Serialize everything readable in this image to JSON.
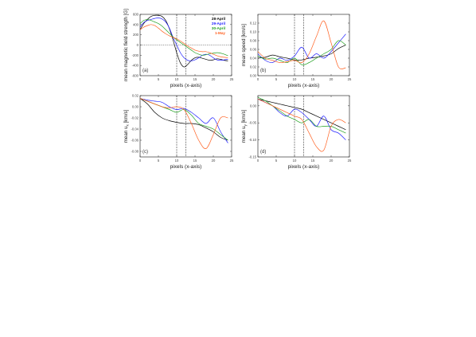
{
  "chart_data": [
    {
      "id": "a",
      "type": "line",
      "panel_label": "(a)",
      "xlabel": "pixels (x-axis)",
      "ylabel": "mean magnetic field strength [G]",
      "xlim": [
        0,
        25
      ],
      "ylim": [
        -600,
        600
      ],
      "xticks": [
        0,
        5,
        10,
        15,
        20,
        25
      ],
      "yticks": [
        -600,
        -400,
        -200,
        0,
        200,
        400,
        600
      ],
      "yticklabels": [
        "-600",
        "-400",
        "-200",
        "0",
        "200",
        "400",
        "600"
      ],
      "hlines": [
        0
      ],
      "vlines": [
        10,
        12.5
      ],
      "legend": {
        "position": "top-right",
        "entries": [
          "28-April",
          "29-April",
          "30-April",
          "1-May"
        ]
      },
      "series": [
        {
          "name": "28-April",
          "color": "#000000",
          "x": [
            0,
            1,
            2,
            3,
            4,
            5,
            6,
            7,
            8,
            9,
            10,
            11,
            12,
            13,
            14,
            15,
            16,
            17,
            18,
            19,
            20,
            21,
            22,
            23,
            24
          ],
          "y": [
            300,
            420,
            500,
            560,
            580,
            580,
            560,
            480,
            320,
            100,
            -150,
            -350,
            -430,
            -380,
            -300,
            -250,
            -240,
            -260,
            -280,
            -300,
            -290,
            -270,
            -280,
            -300,
            -310
          ]
        },
        {
          "name": "29-April",
          "color": "#2020ff",
          "x": [
            0,
            1,
            2,
            3,
            4,
            5,
            6,
            7,
            8,
            9,
            10,
            11,
            12,
            13,
            14,
            15,
            16,
            17,
            18,
            19,
            20,
            21,
            22,
            23,
            24
          ],
          "y": [
            350,
            440,
            480,
            500,
            520,
            530,
            510,
            450,
            330,
            150,
            0,
            -150,
            -250,
            -300,
            -310,
            -290,
            -250,
            -200,
            -180,
            -200,
            -250,
            -290,
            -300,
            -290,
            -280
          ]
        },
        {
          "name": "30-April",
          "color": "#20a020",
          "x": [
            0,
            1,
            2,
            3,
            4,
            5,
            6,
            7,
            8,
            9,
            10,
            11,
            12,
            13,
            14,
            15,
            16,
            17,
            18,
            19,
            20,
            21,
            22,
            23,
            24
          ],
          "y": [
            420,
            480,
            500,
            480,
            450,
            420,
            370,
            300,
            230,
            160,
            100,
            50,
            0,
            -50,
            -100,
            -150,
            -180,
            -200,
            -190,
            -170,
            -160,
            -150,
            -160,
            -180,
            -210
          ]
        },
        {
          "name": "1-May",
          "color": "#ff6020",
          "x": [
            0,
            1,
            2,
            3,
            4,
            5,
            6,
            7,
            8,
            9,
            10,
            11,
            12,
            13,
            14,
            15,
            16,
            17,
            18,
            19,
            20,
            21,
            22,
            23,
            24
          ],
          "y": [
            300,
            350,
            380,
            400,
            380,
            330,
            270,
            220,
            180,
            150,
            120,
            80,
            30,
            -20,
            -60,
            -100,
            -120,
            -130,
            -130,
            -150,
            -180,
            -210,
            -230,
            -240,
            -250
          ]
        }
      ]
    },
    {
      "id": "b",
      "type": "line",
      "panel_label": "(b)",
      "xlabel": "pixels (x-axis)",
      "ylabel": "mean speed [km/s]",
      "xlim": [
        0,
        25
      ],
      "ylim": [
        0.0,
        0.14
      ],
      "xticks": [
        0,
        5,
        10,
        15,
        20,
        25
      ],
      "yticks": [
        0.0,
        0.02,
        0.04,
        0.06,
        0.08,
        0.1,
        0.12
      ],
      "yticklabels": [
        "0.00",
        "0.02",
        "0.04",
        "0.06",
        "0.08",
        "0.10",
        "0.12"
      ],
      "vlines": [
        10,
        12.5
      ],
      "series": [
        {
          "name": "28-April",
          "color": "#000000",
          "x": [
            0,
            2,
            4,
            6,
            8,
            10,
            12,
            14,
            16,
            18,
            20,
            22,
            24
          ],
          "y": [
            0.04,
            0.042,
            0.047,
            0.043,
            0.04,
            0.036,
            0.036,
            0.04,
            0.042,
            0.045,
            0.05,
            0.062,
            0.07
          ]
        },
        {
          "name": "29-April",
          "color": "#2020ff",
          "x": [
            0,
            2,
            4,
            6,
            8,
            10,
            12,
            14,
            16,
            18,
            20,
            22,
            24
          ],
          "y": [
            0.05,
            0.035,
            0.03,
            0.04,
            0.035,
            0.045,
            0.065,
            0.04,
            0.05,
            0.04,
            0.055,
            0.075,
            0.095
          ]
        },
        {
          "name": "30-April",
          "color": "#20a020",
          "x": [
            0,
            2,
            4,
            6,
            8,
            10,
            12,
            14,
            16,
            18,
            20,
            22,
            24
          ],
          "y": [
            0.045,
            0.038,
            0.04,
            0.035,
            0.03,
            0.04,
            0.025,
            0.03,
            0.04,
            0.05,
            0.06,
            0.08,
            0.07
          ]
        },
        {
          "name": "1-May",
          "color": "#ff6020",
          "x": [
            0,
            2,
            4,
            6,
            8,
            10,
            12,
            14,
            16,
            18,
            20,
            22,
            24
          ],
          "y": [
            0.055,
            0.04,
            0.035,
            0.03,
            0.032,
            0.035,
            0.03,
            0.05,
            0.09,
            0.125,
            0.075,
            0.02,
            0.018
          ]
        }
      ]
    },
    {
      "id": "c",
      "type": "line",
      "panel_label": "(c)",
      "xlabel": "pixels (x-axis)",
      "ylabel": "mean ux [km/s]",
      "ylabel_text": "mean u",
      "ylabel_sub": "x",
      "ylabel_unit": " [km/s]",
      "xlim": [
        0,
        25
      ],
      "ylim": [
        -0.09,
        0.02
      ],
      "xticks": [
        0,
        5,
        10,
        15,
        20,
        25
      ],
      "yticks": [
        0.02,
        0.0,
        -0.02,
        -0.04,
        -0.06,
        -0.08
      ],
      "yticklabels": [
        "0.02",
        "0.00",
        "-0.02",
        "-0.04",
        "-0.06",
        "-0.08"
      ],
      "vlines": [
        10,
        12.5
      ],
      "series": [
        {
          "name": "28-April",
          "color": "#000000",
          "x": [
            0,
            2,
            4,
            6,
            8,
            10,
            12,
            14,
            16,
            18,
            20,
            22,
            24
          ],
          "y": [
            0.015,
            0.005,
            -0.01,
            -0.02,
            -0.025,
            -0.028,
            -0.03,
            -0.03,
            -0.032,
            -0.038,
            -0.045,
            -0.055,
            -0.06
          ]
        },
        {
          "name": "29-April",
          "color": "#2020ff",
          "x": [
            0,
            2,
            4,
            6,
            8,
            10,
            12,
            14,
            16,
            18,
            20,
            22,
            24
          ],
          "y": [
            0.015,
            0.012,
            0.01,
            0.008,
            0.0,
            -0.005,
            -0.003,
            -0.01,
            -0.02,
            -0.03,
            -0.02,
            -0.045,
            -0.065
          ]
        },
        {
          "name": "30-April",
          "color": "#20a020",
          "x": [
            0,
            2,
            4,
            6,
            8,
            10,
            12,
            14,
            16,
            18,
            20,
            22,
            24
          ],
          "y": [
            0.015,
            0.01,
            0.005,
            0.0,
            -0.005,
            -0.01,
            -0.005,
            -0.015,
            -0.03,
            -0.035,
            -0.04,
            -0.05,
            -0.06
          ]
        },
        {
          "name": "1-May",
          "color": "#ff6020",
          "x": [
            0,
            2,
            4,
            6,
            8,
            10,
            12,
            14,
            16,
            18,
            20,
            22,
            24
          ],
          "y": [
            0.015,
            0.01,
            0.005,
            0.0,
            -0.002,
            0.0,
            -0.005,
            -0.03,
            -0.06,
            -0.075,
            -0.05,
            -0.02,
            -0.02
          ]
        }
      ]
    },
    {
      "id": "d",
      "type": "line",
      "panel_label": "(d)",
      "xlabel": "pixels (x-axis)",
      "ylabel": "mean uy [km/s]",
      "ylabel_text": "mean u",
      "ylabel_sub": "y",
      "ylabel_unit": " [km/s]",
      "xlim": [
        0,
        25
      ],
      "ylim": [
        -0.15,
        0.03
      ],
      "xticks": [
        0,
        5,
        10,
        15,
        20,
        25
      ],
      "yticks": [
        0.0,
        -0.05,
        -0.1,
        -0.15
      ],
      "yticklabels": [
        "0.00",
        "-0.05",
        "-0.10",
        "-0.15"
      ],
      "vlines": [
        10,
        12.5
      ],
      "series": [
        {
          "name": "28-April",
          "color": "#000000",
          "x": [
            0,
            2,
            4,
            6,
            8,
            10,
            12,
            14,
            16,
            18,
            20,
            22,
            24
          ],
          "y": [
            0.02,
            0.015,
            0.01,
            0.005,
            0.0,
            -0.005,
            -0.01,
            -0.02,
            -0.03,
            -0.04,
            -0.05,
            -0.06,
            -0.07
          ]
        },
        {
          "name": "29-April",
          "color": "#2020ff",
          "x": [
            0,
            2,
            4,
            6,
            8,
            10,
            12,
            14,
            16,
            18,
            20,
            22,
            24
          ],
          "y": [
            0.02,
            0.01,
            0.0,
            -0.02,
            -0.03,
            -0.01,
            -0.02,
            -0.04,
            -0.06,
            -0.03,
            -0.07,
            -0.08,
            -0.1
          ]
        },
        {
          "name": "30-April",
          "color": "#20a020",
          "x": [
            0,
            2,
            4,
            6,
            8,
            10,
            12,
            14,
            16,
            18,
            20,
            22,
            24
          ],
          "y": [
            0.025,
            0.015,
            0.0,
            -0.015,
            -0.03,
            -0.04,
            -0.05,
            -0.04,
            -0.06,
            -0.06,
            -0.06,
            -0.07,
            -0.08
          ]
        },
        {
          "name": "1-May",
          "color": "#ff6020",
          "x": [
            0,
            2,
            4,
            6,
            8,
            10,
            12,
            14,
            16,
            18,
            20,
            22,
            24
          ],
          "y": [
            0.02,
            0.01,
            0.0,
            -0.01,
            -0.02,
            -0.03,
            -0.04,
            -0.08,
            -0.12,
            -0.13,
            -0.06,
            -0.04,
            -0.05
          ]
        }
      ]
    }
  ]
}
